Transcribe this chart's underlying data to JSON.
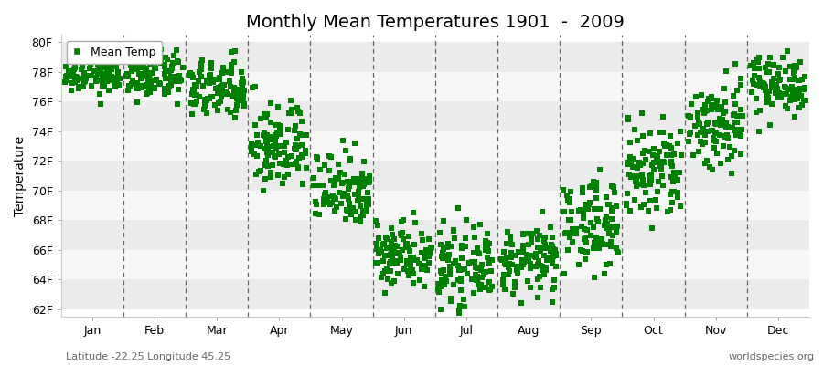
{
  "title": "Monthly Mean Temperatures 1901  -  2009",
  "ylabel": "Temperature",
  "xlabel_months": [
    "Jan",
    "Feb",
    "Mar",
    "Apr",
    "May",
    "Jun",
    "Jul",
    "Aug",
    "Sep",
    "Oct",
    "Nov",
    "Dec"
  ],
  "ytick_labels": [
    "62F",
    "64F",
    "66F",
    "68F",
    "70F",
    "72F",
    "74F",
    "76F",
    "78F",
    "80F"
  ],
  "ytick_values": [
    62,
    64,
    66,
    68,
    70,
    72,
    74,
    76,
    78,
    80
  ],
  "ylim": [
    61.5,
    80.5
  ],
  "marker_color": "#008000",
  "marker": "s",
  "marker_size": 4,
  "legend_label": "Mean Temp",
  "footnote_left": "Latitude -22.25 Longitude 45.25",
  "footnote_right": "worldspecies.org",
  "background_color": "#FFFFFF",
  "band_colors": [
    "#EBEBEB",
    "#F7F7F7"
  ],
  "title_fontsize": 14,
  "axis_fontsize": 10,
  "tick_fontsize": 9,
  "footnote_fontsize": 8,
  "monthly_means": [
    77.9,
    77.8,
    76.8,
    73.0,
    70.2,
    65.8,
    64.8,
    65.3,
    67.8,
    71.2,
    74.5,
    77.2
  ],
  "monthly_stds": [
    0.7,
    0.8,
    1.0,
    1.5,
    1.3,
    1.1,
    1.2,
    1.1,
    1.5,
    1.8,
    1.6,
    1.0
  ],
  "n_years": 109
}
